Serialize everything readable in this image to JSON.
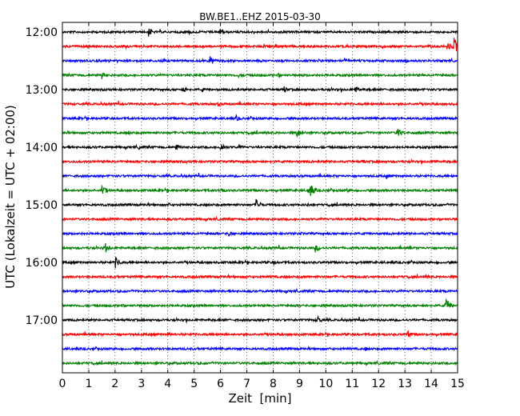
{
  "chart_data": {
    "type": "line",
    "title": "BW.BE1..EHZ 2015-03-30",
    "xlabel": "Zeit  [min]",
    "ylabel": "UTC (Lokalzeit = UTC + 02:00)",
    "xlim": [
      0,
      15
    ],
    "x_ticks": [
      0,
      1,
      2,
      3,
      4,
      5,
      6,
      7,
      8,
      9,
      10,
      11,
      12,
      13,
      14,
      15
    ],
    "x_tick_labels": [
      "0",
      "1",
      "2",
      "3",
      "4",
      "5",
      "6",
      "7",
      "8",
      "9",
      "10",
      "11",
      "12",
      "13",
      "14",
      "15"
    ],
    "y_tick_labels": [
      "12:00",
      "13:00",
      "14:00",
      "15:00",
      "16:00",
      "17:00"
    ],
    "trace_start": "12:00",
    "trace_interval_minutes": 15,
    "trace_colors": [
      "#000000",
      "#ff0000",
      "#0000ff",
      "#008000"
    ],
    "grid": "vertical dotted",
    "traces": [
      {
        "start": "12:00",
        "color": "#000000",
        "events": [
          [
            3.25,
            7
          ],
          [
            6.0,
            6
          ],
          [
            4.8,
            3
          ]
        ]
      },
      {
        "start": "12:15",
        "color": "#ff0000",
        "events": [
          [
            14.85,
            12
          ],
          [
            14.6,
            6
          ],
          [
            12.1,
            3
          ],
          [
            8.1,
            3
          ]
        ]
      },
      {
        "start": "12:30",
        "color": "#0000ff",
        "events": [
          [
            5.6,
            7
          ],
          [
            10.7,
            5
          ],
          [
            3.8,
            3
          ],
          [
            13.0,
            3
          ]
        ]
      },
      {
        "start": "12:45",
        "color": "#008000",
        "events": [
          [
            1.5,
            5
          ],
          [
            6.7,
            4
          ],
          [
            8.2,
            3
          ]
        ]
      },
      {
        "start": "13:00",
        "color": "#000000",
        "events": [
          [
            11.1,
            6
          ],
          [
            4.6,
            5
          ],
          [
            8.4,
            5
          ],
          [
            5.3,
            3
          ]
        ]
      },
      {
        "start": "13:15",
        "color": "#ff0000",
        "events": [
          [
            5.9,
            3
          ]
        ]
      },
      {
        "start": "13:30",
        "color": "#0000ff",
        "events": [
          [
            6.6,
            4
          ]
        ]
      },
      {
        "start": "13:45",
        "color": "#008000",
        "events": [
          [
            12.7,
            8
          ],
          [
            8.9,
            7
          ],
          [
            2.5,
            3
          ]
        ]
      },
      {
        "start": "14:00",
        "color": "#000000",
        "events": [
          [
            6.0,
            7
          ],
          [
            4.3,
            5
          ],
          [
            6.7,
            4
          ],
          [
            2.9,
            3
          ]
        ]
      },
      {
        "start": "14:15",
        "color": "#ff0000",
        "events": [
          [
            11.4,
            3
          ],
          [
            14.1,
            3
          ],
          [
            4.7,
            2
          ]
        ]
      },
      {
        "start": "14:30",
        "color": "#0000ff",
        "events": [
          [
            12.3,
            4
          ],
          [
            4.0,
            2
          ]
        ]
      },
      {
        "start": "14:45",
        "color": "#008000",
        "events": [
          [
            9.35,
            12
          ],
          [
            1.5,
            8
          ],
          [
            6.0,
            5
          ],
          [
            10.8,
            3
          ]
        ]
      },
      {
        "start": "15:00",
        "color": "#000000",
        "events": [
          [
            7.35,
            8
          ],
          [
            4.0,
            3
          ],
          [
            9.3,
            3
          ]
        ]
      },
      {
        "start": "15:15",
        "color": "#ff0000",
        "events": [
          [
            6.3,
            3
          ]
        ]
      },
      {
        "start": "15:30",
        "color": "#0000ff",
        "events": [
          [
            6.3,
            4
          ],
          [
            9.0,
            3
          ]
        ]
      },
      {
        "start": "15:45",
        "color": "#008000",
        "events": [
          [
            1.6,
            8
          ],
          [
            9.6,
            6
          ],
          [
            13.2,
            3
          ]
        ]
      },
      {
        "start": "16:00",
        "color": "#000000",
        "events": [
          [
            2.0,
            8
          ],
          [
            8.0,
            3
          ],
          [
            14.2,
            2
          ]
        ]
      },
      {
        "start": "16:15",
        "color": "#ff0000",
        "events": [
          [
            13.8,
            3
          ]
        ]
      },
      {
        "start": "16:30",
        "color": "#0000ff",
        "events": [
          [
            5.1,
            2
          ]
        ]
      },
      {
        "start": "16:45",
        "color": "#008000",
        "events": [
          [
            14.55,
            10
          ],
          [
            2.2,
            3
          ]
        ]
      },
      {
        "start": "17:00",
        "color": "#000000",
        "events": [
          [
            9.65,
            7
          ],
          [
            3.8,
            2
          ]
        ]
      },
      {
        "start": "17:15",
        "color": "#ff0000",
        "events": [
          [
            13.1,
            5
          ],
          [
            4.0,
            3
          ]
        ]
      },
      {
        "start": "17:30",
        "color": "#0000ff",
        "events": [
          [
            11.5,
            3
          ],
          [
            9.5,
            2
          ]
        ]
      },
      {
        "start": "17:45",
        "color": "#008000",
        "events": [
          [
            8.0,
            2
          ]
        ]
      }
    ]
  }
}
